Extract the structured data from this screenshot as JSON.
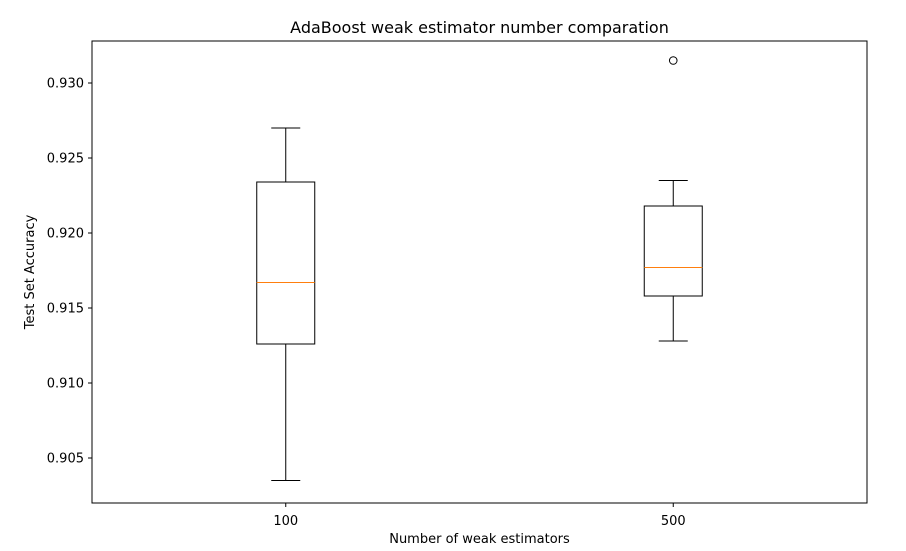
{
  "chart_data": {
    "type": "box",
    "title": "AdaBoost weak estimator number comparation",
    "xlabel": "Number of weak estimators",
    "ylabel": "Test Set Accuracy",
    "categories": [
      "100",
      "500"
    ],
    "ylim": [
      0.902,
      0.9328
    ],
    "yticks": [
      "0.905",
      "0.910",
      "0.915",
      "0.920",
      "0.925",
      "0.930"
    ],
    "boxes": [
      {
        "category": "100",
        "whisker_low": 0.9035,
        "q1": 0.9126,
        "median": 0.9167,
        "q3": 0.9234,
        "whisker_high": 0.927,
        "outliers": []
      },
      {
        "category": "500",
        "whisker_low": 0.9128,
        "q1": 0.9158,
        "median": 0.9177,
        "q3": 0.9218,
        "whisker_high": 0.9235,
        "outliers": [
          0.9315
        ]
      }
    ],
    "grid": false,
    "colors": {
      "box": "#000000",
      "median": "#ff7f0e",
      "frame": "#000000"
    }
  }
}
